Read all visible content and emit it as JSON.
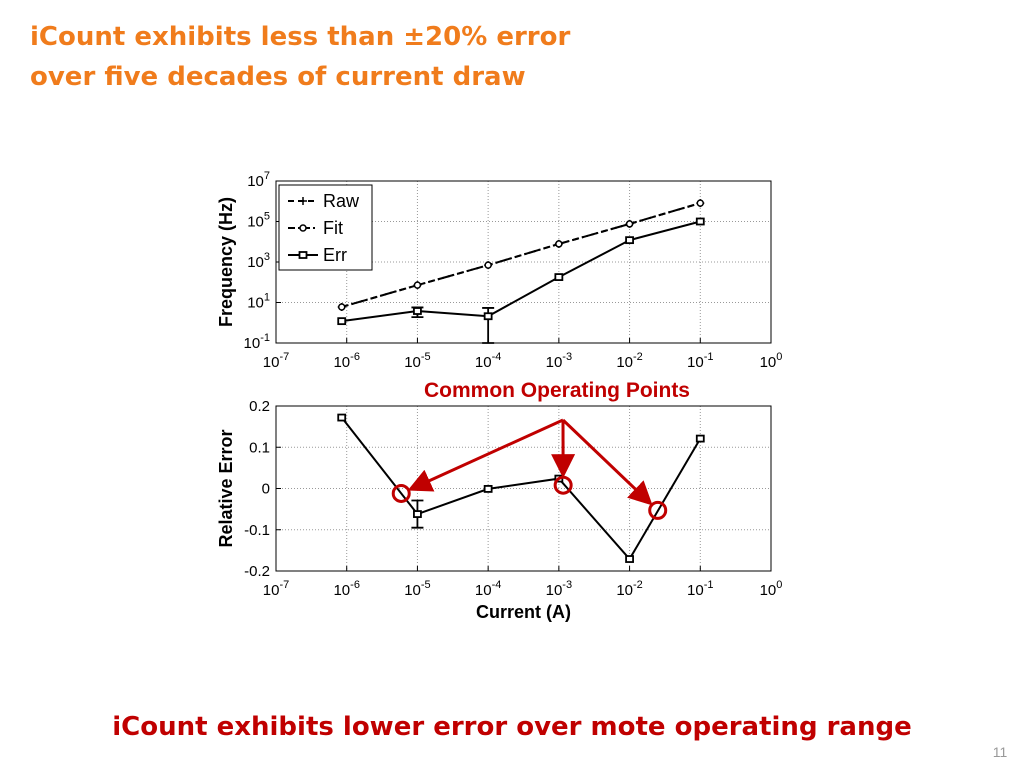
{
  "header": {
    "title_lines": [
      "iCount exhibits less than ±20% error",
      "over five decades of current draw"
    ]
  },
  "footer": {
    "text": "iCount exhibits lower error over mote operating range",
    "page_number": "11"
  },
  "chart_data": [
    {
      "type": "line",
      "ylabel": "Frequency (Hz)",
      "xscale": "log",
      "yscale": "log",
      "xlim": [
        1e-07,
        1
      ],
      "ylim": [
        0.1,
        10000000
      ],
      "xticks": [
        {
          "value": 1e-07,
          "label": "10",
          "exponent": "-7"
        },
        {
          "value": 1e-06,
          "label": "10",
          "exponent": "-6"
        },
        {
          "value": 1e-05,
          "label": "10",
          "exponent": "-5"
        },
        {
          "value": 0.0001,
          "label": "10",
          "exponent": "-4"
        },
        {
          "value": 0.001,
          "label": "10",
          "exponent": "-3"
        },
        {
          "value": 0.01,
          "label": "10",
          "exponent": "-2"
        },
        {
          "value": 0.1,
          "label": "10",
          "exponent": "-1"
        },
        {
          "value": 1,
          "label": "10",
          "exponent": "0"
        }
      ],
      "yticks": [
        {
          "value": 0.1,
          "label": "10",
          "exponent": "-1"
        },
        {
          "value": 10,
          "label": "10",
          "exponent": "1"
        },
        {
          "value": 1000,
          "label": "10",
          "exponent": "3"
        },
        {
          "value": 100000,
          "label": "10",
          "exponent": "5"
        },
        {
          "value": 10000000,
          "label": "10",
          "exponent": "7"
        }
      ],
      "grid": true,
      "legend": "upper left",
      "x": [
        8.5e-07,
        1e-05,
        0.0001,
        0.001,
        0.01,
        0.1
      ],
      "series": [
        {
          "name": "Raw",
          "color": "#000000",
          "linestyle": "--",
          "marker": "+",
          "values": [
            6,
            72,
            700,
            7800,
            76000,
            810000
          ]
        },
        {
          "name": "Fit",
          "color": "#000000",
          "linestyle": "-.",
          "marker": "o",
          "values": [
            6,
            72,
            700,
            7800,
            76000,
            810000
          ]
        },
        {
          "name": "Err",
          "color": "#000000",
          "linestyle": "-",
          "marker": "s",
          "values": [
            1.2,
            3.8,
            2.1,
            180,
            12000,
            100000
          ],
          "errors": [
            null,
            1.9,
            3.3,
            null,
            null,
            null
          ]
        }
      ]
    },
    {
      "type": "line",
      "ylabel": "Relative Error",
      "xlabel": "Current (A)",
      "xscale": "log",
      "yscale": "linear",
      "xlim": [
        1e-07,
        1
      ],
      "ylim": [
        -0.2,
        0.2
      ],
      "xticks": [
        {
          "value": 1e-07,
          "label": "10",
          "exponent": "-7"
        },
        {
          "value": 1e-06,
          "label": "10",
          "exponent": "-6"
        },
        {
          "value": 1e-05,
          "label": "10",
          "exponent": "-5"
        },
        {
          "value": 0.0001,
          "label": "10",
          "exponent": "-4"
        },
        {
          "value": 0.001,
          "label": "10",
          "exponent": "-3"
        },
        {
          "value": 0.01,
          "label": "10",
          "exponent": "-2"
        },
        {
          "value": 0.1,
          "label": "10",
          "exponent": "-1"
        },
        {
          "value": 1,
          "label": "10",
          "exponent": "0"
        }
      ],
      "yticks": [
        0.2,
        0.1,
        0,
        -0.1,
        -0.2
      ],
      "grid": true,
      "x": [
        8.5e-07,
        1e-05,
        0.0001,
        0.001,
        0.01,
        0.1
      ],
      "series": [
        {
          "color": "#000000",
          "linestyle": "-",
          "marker": "s",
          "values": [
            0.172,
            -0.062,
            -0.001,
            0.024,
            -0.171,
            0.121
          ],
          "errors": [
            null,
            0.033,
            null,
            null,
            null,
            null
          ]
        }
      ],
      "annotation": "Common Operating Points",
      "highlights": {
        "color": "#c00000",
        "x": [
          5.9e-06,
          0.00115,
          0.025
        ],
        "y": [
          -0.012,
          0.008,
          -0.053
        ]
      }
    }
  ]
}
